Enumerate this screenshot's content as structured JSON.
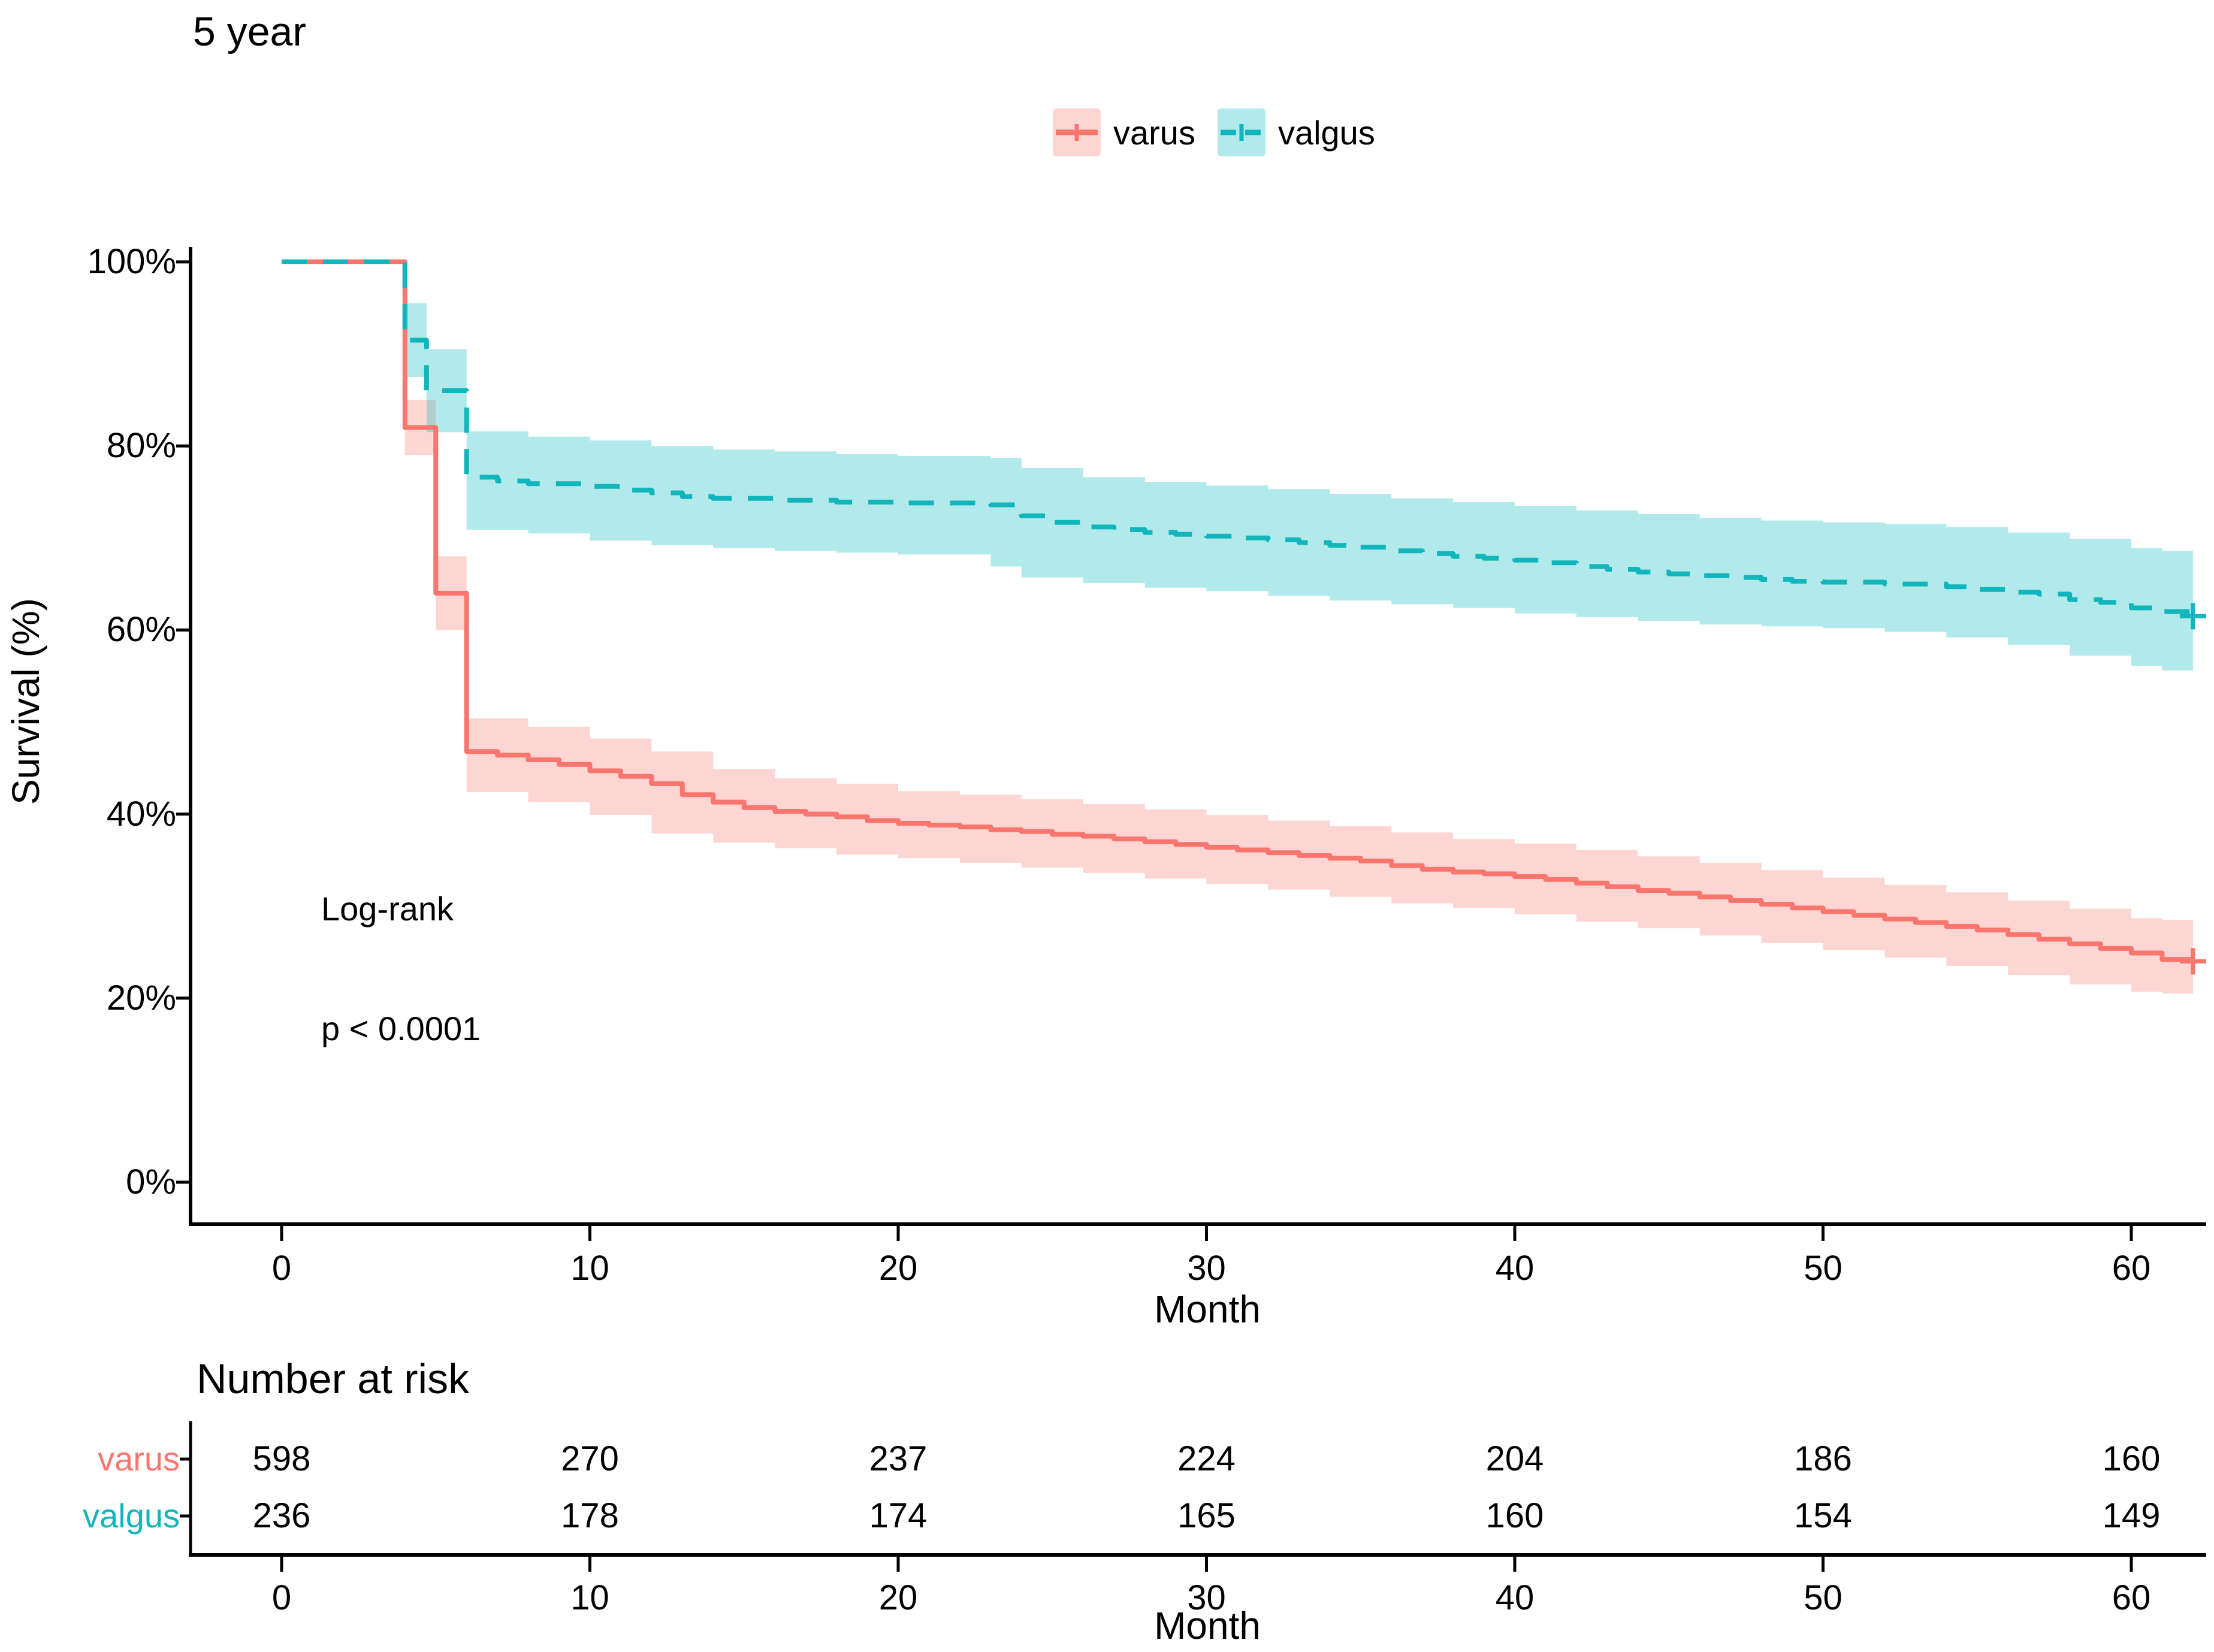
{
  "title": "5 year",
  "colors": {
    "varus_line": "#F8766D",
    "varus_band": "rgba(248,118,109,0.30)",
    "valgus_line": "#10B6BB",
    "valgus_band": "rgba(0,186,190,0.30)",
    "axis": "#000000",
    "text": "#000000"
  },
  "chart_data": {
    "type": "line",
    "subtype": "kaplan-meier-step-with-confidence-bands",
    "title": "5 year",
    "xlabel": "Month",
    "ylabel": "Survival (%)",
    "xlim": [
      0,
      62
    ],
    "ylim_percent": [
      0,
      100
    ],
    "xticks": [
      0,
      10,
      20,
      30,
      40,
      50,
      60
    ],
    "yticks_percent": [
      0,
      20,
      40,
      60,
      80,
      100
    ],
    "grid": "off",
    "legend_position": "top-center",
    "annotations": [
      "Log-rank",
      "p < 0.0001"
    ],
    "series": [
      {
        "name": "varus",
        "line_style": "solid",
        "color": "#F8766D",
        "band_color": "rgba(248,118,109,0.30)",
        "steps": [
          [
            0,
            100
          ],
          [
            4,
            100
          ],
          [
            4,
            82
          ],
          [
            5,
            82
          ],
          [
            5,
            64
          ],
          [
            6,
            64
          ],
          [
            6,
            46.8
          ],
          [
            7,
            46.4
          ],
          [
            8,
            45.9
          ],
          [
            9,
            45.4
          ],
          [
            10,
            44.7
          ],
          [
            11,
            44.1
          ],
          [
            12,
            43.3
          ],
          [
            13,
            42.1
          ],
          [
            14,
            41.3
          ],
          [
            15,
            40.7
          ],
          [
            16,
            40.3
          ],
          [
            17,
            40.0
          ],
          [
            18,
            39.7
          ],
          [
            19,
            39.3
          ],
          [
            20,
            39.0
          ],
          [
            21,
            38.8
          ],
          [
            22,
            38.6
          ],
          [
            23,
            38.3
          ],
          [
            24,
            38.1
          ],
          [
            25,
            37.8
          ],
          [
            26,
            37.6
          ],
          [
            27,
            37.3
          ],
          [
            28,
            37.0
          ],
          [
            29,
            36.7
          ],
          [
            30,
            36.4
          ],
          [
            31,
            36.1
          ],
          [
            32,
            35.8
          ],
          [
            33,
            35.5
          ],
          [
            34,
            35.2
          ],
          [
            35,
            34.9
          ],
          [
            36,
            34.4
          ],
          [
            37,
            34.0
          ],
          [
            38,
            33.7
          ],
          [
            39,
            33.5
          ],
          [
            40,
            33.2
          ],
          [
            41,
            32.9
          ],
          [
            42,
            32.5
          ],
          [
            43,
            32.1
          ],
          [
            44,
            31.7
          ],
          [
            45,
            31.4
          ],
          [
            46,
            31.0
          ],
          [
            47,
            30.6
          ],
          [
            48,
            30.2
          ],
          [
            49,
            29.8
          ],
          [
            50,
            29.4
          ],
          [
            51,
            29.0
          ],
          [
            52,
            28.6
          ],
          [
            53,
            28.2
          ],
          [
            54,
            27.8
          ],
          [
            55,
            27.4
          ],
          [
            56,
            26.9
          ],
          [
            57,
            26.4
          ],
          [
            58,
            25.9
          ],
          [
            59,
            25.4
          ],
          [
            60,
            24.9
          ],
          [
            61,
            24.2
          ],
          [
            62,
            24.0
          ]
        ],
        "ci_upper": [
          [
            4,
            85
          ],
          [
            5,
            85
          ],
          [
            5,
            68
          ],
          [
            6,
            68
          ],
          [
            6,
            50.4
          ],
          [
            8,
            49.5
          ],
          [
            10,
            48.2
          ],
          [
            12,
            46.8
          ],
          [
            14,
            44.9
          ],
          [
            16,
            43.9
          ],
          [
            18,
            43.3
          ],
          [
            20,
            42.5
          ],
          [
            22,
            42.1
          ],
          [
            24,
            41.6
          ],
          [
            26,
            41.1
          ],
          [
            28,
            40.5
          ],
          [
            30,
            39.9
          ],
          [
            32,
            39.3
          ],
          [
            34,
            38.7
          ],
          [
            36,
            38.0
          ],
          [
            38,
            37.3
          ],
          [
            40,
            36.8
          ],
          [
            42,
            36.1
          ],
          [
            44,
            35.4
          ],
          [
            46,
            34.7
          ],
          [
            48,
            33.9
          ],
          [
            50,
            33.1
          ],
          [
            52,
            32.3
          ],
          [
            54,
            31.5
          ],
          [
            56,
            30.6
          ],
          [
            58,
            29.7
          ],
          [
            60,
            28.7
          ],
          [
            61,
            28.5
          ],
          [
            62,
            28.4
          ]
        ],
        "ci_lower": [
          [
            4,
            79
          ],
          [
            5,
            79
          ],
          [
            5,
            60
          ],
          [
            6,
            60
          ],
          [
            6,
            43.3
          ],
          [
            8,
            42.4
          ],
          [
            10,
            41.3
          ],
          [
            12,
            39.9
          ],
          [
            14,
            37.9
          ],
          [
            16,
            36.9
          ],
          [
            18,
            36.3
          ],
          [
            20,
            35.6
          ],
          [
            22,
            35.2
          ],
          [
            24,
            34.7
          ],
          [
            26,
            34.2
          ],
          [
            28,
            33.6
          ],
          [
            30,
            33.0
          ],
          [
            32,
            32.4
          ],
          [
            34,
            31.8
          ],
          [
            36,
            31.0
          ],
          [
            38,
            30.3
          ],
          [
            40,
            29.8
          ],
          [
            42,
            29.1
          ],
          [
            44,
            28.3
          ],
          [
            46,
            27.6
          ],
          [
            48,
            26.8
          ],
          [
            50,
            26.0
          ],
          [
            52,
            25.2
          ],
          [
            54,
            24.4
          ],
          [
            56,
            23.5
          ],
          [
            58,
            22.5
          ],
          [
            60,
            21.5
          ],
          [
            61,
            20.7
          ],
          [
            62,
            20.5
          ]
        ],
        "censor_marks": [
          [
            62,
            24.0
          ]
        ]
      },
      {
        "name": "valgus",
        "line_style": "dashed",
        "color": "#10B6BB",
        "band_color": "rgba(0,186,190,0.30)",
        "steps": [
          [
            0,
            100
          ],
          [
            4,
            100
          ],
          [
            4,
            91.5
          ],
          [
            4.7,
            91.5
          ],
          [
            4.7,
            86
          ],
          [
            6,
            86
          ],
          [
            6,
            76.6
          ],
          [
            7,
            76.2
          ],
          [
            8,
            75.9
          ],
          [
            10,
            75.6
          ],
          [
            11,
            75.2
          ],
          [
            12,
            74.9
          ],
          [
            13,
            74.5
          ],
          [
            14,
            74.3
          ],
          [
            16,
            74.1
          ],
          [
            18,
            73.9
          ],
          [
            20,
            73.8
          ],
          [
            23,
            73.6
          ],
          [
            24,
            72.4
          ],
          [
            25,
            71.7
          ],
          [
            26,
            71.2
          ],
          [
            27,
            70.9
          ],
          [
            28,
            70.6
          ],
          [
            29,
            70.4
          ],
          [
            30,
            70.2
          ],
          [
            31,
            70.0
          ],
          [
            32,
            69.8
          ],
          [
            33,
            69.5
          ],
          [
            34,
            69.2
          ],
          [
            35,
            69.0
          ],
          [
            36,
            68.6
          ],
          [
            37,
            68.3
          ],
          [
            38,
            68.0
          ],
          [
            39,
            67.8
          ],
          [
            40,
            67.6
          ],
          [
            41,
            67.3
          ],
          [
            42,
            66.9
          ],
          [
            43,
            66.6
          ],
          [
            44,
            66.3
          ],
          [
            45,
            66.1
          ],
          [
            46,
            65.9
          ],
          [
            47,
            65.7
          ],
          [
            48,
            65.5
          ],
          [
            49,
            65.3
          ],
          [
            50,
            65.2
          ],
          [
            52,
            65.0
          ],
          [
            54,
            64.7
          ],
          [
            55,
            64.4
          ],
          [
            56,
            64.1
          ],
          [
            57,
            63.9
          ],
          [
            58,
            63.3
          ],
          [
            59,
            63.0
          ],
          [
            60,
            62.4
          ],
          [
            61,
            62.0
          ],
          [
            62,
            61.5
          ]
        ],
        "ci_upper": [
          [
            4,
            95.5
          ],
          [
            4.7,
            95.5
          ],
          [
            4.7,
            90.5
          ],
          [
            6,
            90.5
          ],
          [
            6,
            81.6
          ],
          [
            8,
            81.0
          ],
          [
            10,
            80.6
          ],
          [
            12,
            80.0
          ],
          [
            14,
            79.6
          ],
          [
            16,
            79.4
          ],
          [
            18,
            79.1
          ],
          [
            20,
            78.9
          ],
          [
            23,
            78.7
          ],
          [
            24,
            77.6
          ],
          [
            26,
            76.6
          ],
          [
            28,
            76.1
          ],
          [
            30,
            75.7
          ],
          [
            32,
            75.3
          ],
          [
            34,
            74.8
          ],
          [
            36,
            74.3
          ],
          [
            38,
            73.9
          ],
          [
            40,
            73.5
          ],
          [
            42,
            73.0
          ],
          [
            44,
            72.6
          ],
          [
            46,
            72.2
          ],
          [
            48,
            71.9
          ],
          [
            50,
            71.7
          ],
          [
            52,
            71.5
          ],
          [
            54,
            71.2
          ],
          [
            56,
            70.6
          ],
          [
            58,
            69.9
          ],
          [
            60,
            68.9
          ],
          [
            61,
            68.6
          ],
          [
            62,
            68.2
          ]
        ],
        "ci_lower": [
          [
            4,
            87.5
          ],
          [
            4.7,
            87.5
          ],
          [
            4.7,
            81.5
          ],
          [
            6,
            81.5
          ],
          [
            6,
            71.7
          ],
          [
            8,
            70.9
          ],
          [
            10,
            70.5
          ],
          [
            12,
            69.7
          ],
          [
            14,
            69.2
          ],
          [
            16,
            68.9
          ],
          [
            18,
            68.6
          ],
          [
            20,
            68.4
          ],
          [
            23,
            68.2
          ],
          [
            24,
            66.9
          ],
          [
            26,
            65.7
          ],
          [
            28,
            65.1
          ],
          [
            30,
            64.6
          ],
          [
            32,
            64.2
          ],
          [
            34,
            63.7
          ],
          [
            36,
            63.2
          ],
          [
            38,
            62.8
          ],
          [
            40,
            62.4
          ],
          [
            42,
            61.8
          ],
          [
            44,
            61.4
          ],
          [
            46,
            61.0
          ],
          [
            48,
            60.6
          ],
          [
            50,
            60.4
          ],
          [
            52,
            60.2
          ],
          [
            54,
            59.8
          ],
          [
            56,
            59.2
          ],
          [
            58,
            58.4
          ],
          [
            60,
            57.2
          ],
          [
            61,
            56.1
          ],
          [
            62,
            55.6
          ]
        ],
        "censor_marks": [
          [
            62,
            61.5
          ]
        ]
      }
    ],
    "risk_table": {
      "title": "Number at risk",
      "xlabel": "Month",
      "xticks": [
        0,
        10,
        20,
        30,
        40,
        50,
        60
      ],
      "rows": [
        {
          "name": "varus",
          "color": "#F8766D",
          "values": [
            598,
            270,
            237,
            224,
            204,
            186,
            160
          ]
        },
        {
          "name": "valgus",
          "color": "#10B6BB",
          "values": [
            236,
            178,
            174,
            165,
            160,
            154,
            149
          ]
        }
      ]
    }
  }
}
